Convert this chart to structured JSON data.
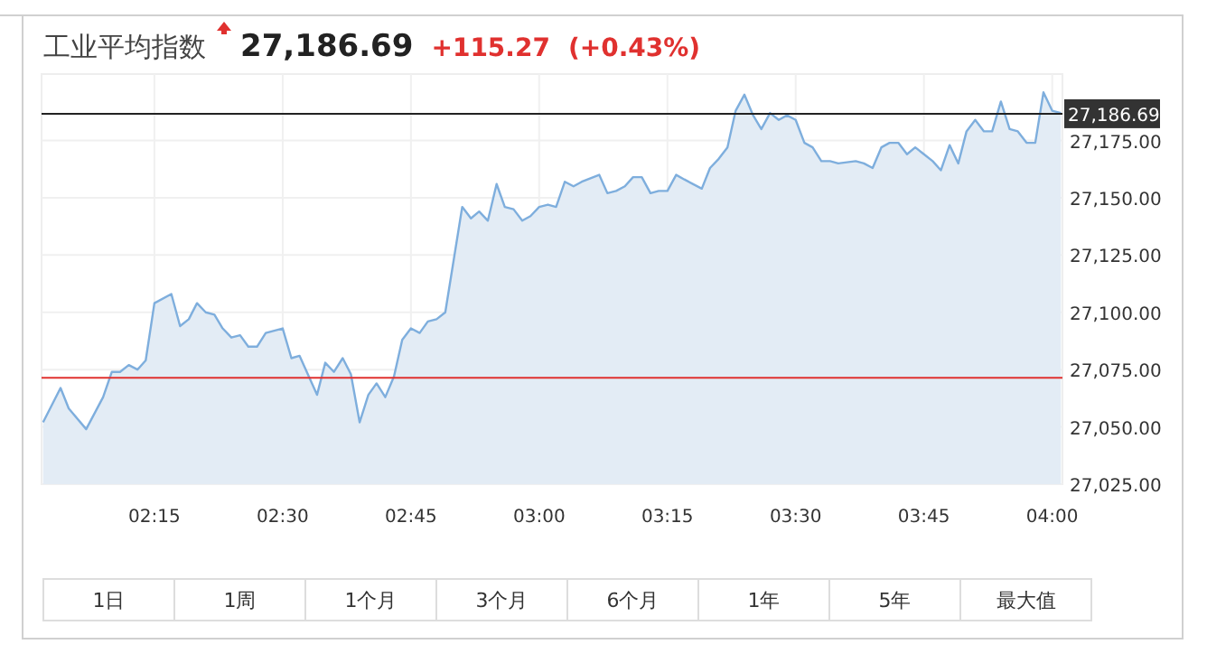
{
  "chart_data": {
    "type": "area",
    "title": "工业平均指数",
    "annotations": [
      "27,186.69",
      "+115.27",
      "(+0.43%)",
      "1日",
      "1周",
      "1个月",
      "3个月",
      "6个月",
      "1年",
      "5年",
      "最大值"
    ],
    "series": [
      {
        "color": "#7eaedd",
        "x": [
          2.033,
          2.067,
          2.083,
          2.117,
          2.15,
          2.167,
          2.183,
          2.2,
          2.217,
          2.233,
          2.25,
          2.283,
          2.3,
          2.317,
          2.333,
          2.35,
          2.367,
          2.383,
          2.4,
          2.417,
          2.433,
          2.45,
          2.467,
          2.5,
          2.517,
          2.533,
          2.567,
          2.583,
          2.6,
          2.617,
          2.633,
          2.65,
          2.667,
          2.683,
          2.7,
          2.717,
          2.733,
          2.75,
          2.767,
          2.783,
          2.8,
          2.817,
          2.85,
          2.867,
          2.883,
          2.9,
          2.917,
          2.933,
          2.95,
          2.967,
          2.983,
          3,
          3.017,
          3.033,
          3.05,
          3.067,
          3.083,
          3.117,
          3.133,
          3.15,
          3.167,
          3.183,
          3.2,
          3.217,
          3.233,
          3.25,
          3.267,
          3.283,
          3.317,
          3.333,
          3.35,
          3.367,
          3.383,
          3.4,
          3.417,
          3.433,
          3.45,
          3.467,
          3.483,
          3.5,
          3.517,
          3.533,
          3.55,
          3.567,
          3.583,
          3.617,
          3.633,
          3.65,
          3.667,
          3.683,
          3.7,
          3.717,
          3.733,
          3.75,
          3.767,
          3.783,
          3.8,
          3.817,
          3.833,
          3.85,
          3.867,
          3.883,
          3.9,
          3.917,
          3.933,
          3.95,
          3.967,
          3.983,
          4,
          4.017
        ],
        "values": [
          27052,
          27067,
          27058,
          27049,
          27063,
          27074,
          27074,
          27077,
          27075,
          27079,
          27104,
          27108,
          27094,
          27097,
          27104,
          27100,
          27099,
          27093,
          27089,
          27090,
          27085,
          27085,
          27091,
          27093,
          27080,
          27081,
          27064,
          27078,
          27074,
          27080,
          27073,
          27052,
          27064,
          27069,
          27063,
          27072,
          27088,
          27093,
          27091,
          27096,
          27097,
          27100,
          27146,
          27141,
          27144,
          27140,
          27156,
          27146,
          27145,
          27140,
          27142,
          27146,
          27147,
          27146,
          27157,
          27155,
          27157,
          27160,
          27152,
          27153,
          27155,
          27159,
          27159,
          27152,
          27153,
          27153,
          27160,
          27158,
          27154,
          27163,
          27167,
          27172,
          27188,
          27195,
          27186,
          27180,
          27187,
          27184,
          27186,
          27184,
          27174,
          27172,
          27166,
          27166,
          27165,
          27166,
          27165,
          27163,
          27172,
          27174,
          27174,
          27169,
          27172,
          27169,
          27166,
          27162,
          27173,
          27165,
          27179,
          27184,
          27179,
          27179,
          27192,
          27180,
          27179,
          27174,
          27174,
          27196,
          27188,
          27187
        ]
      }
    ],
    "xlim": [
      2.03,
      4.02
    ],
    "xticks": [
      {
        "value": 2.25,
        "label": "02:15"
      },
      {
        "value": 2.5,
        "label": "02:30"
      },
      {
        "value": 2.75,
        "label": "02:45"
      },
      {
        "value": 3,
        "label": "03:00"
      },
      {
        "value": 3.25,
        "label": "03:15"
      },
      {
        "value": 3.5,
        "label": "03:30"
      },
      {
        "value": 3.75,
        "label": "03:45"
      },
      {
        "value": 4,
        "label": "04:00"
      }
    ],
    "ylim": [
      27025,
      27204
    ],
    "yticks": [
      {
        "value": 27025,
        "label": "27,025.00"
      },
      {
        "value": 27050,
        "label": "27,050.00"
      },
      {
        "value": 27075,
        "label": "27,075.00"
      },
      {
        "value": 27100,
        "label": "27,100.00"
      },
      {
        "value": 27125,
        "label": "27,125.00"
      },
      {
        "value": 27150,
        "label": "27,150.00"
      },
      {
        "value": 27175,
        "label": "27,175.00"
      }
    ],
    "ref_lines": [
      {
        "axis": "y",
        "value": 27071.42,
        "color": "#e0312f"
      },
      {
        "axis": "y",
        "value": 27186.69,
        "label": "27,186.69",
        "color": "#222222"
      }
    ],
    "grid": true,
    "marker": "none",
    "line_style": "solid"
  }
}
